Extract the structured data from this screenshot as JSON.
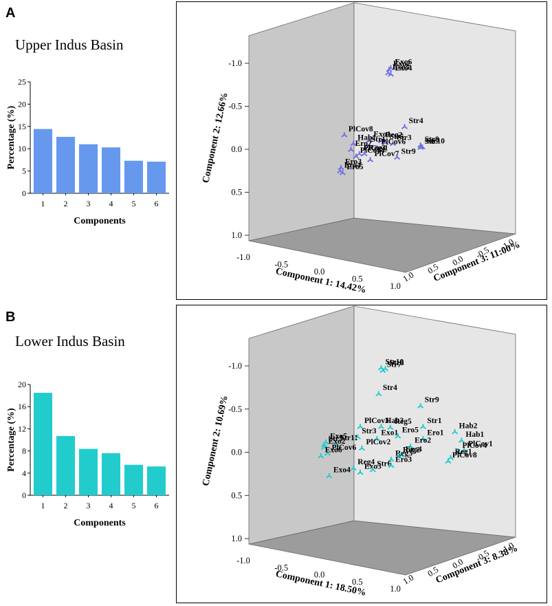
{
  "panels": [
    {
      "letter": "A",
      "title": "Upper Indus Basin",
      "bar_color": "#6699ee",
      "marker_color": "#6f6fe6",
      "chart_data": [
        {
          "type": "bar",
          "categories": [
            "1",
            "2",
            "3",
            "4",
            "5",
            "6"
          ],
          "values": [
            14.42,
            12.66,
            11.0,
            10.3,
            7.3,
            7.1
          ],
          "xlabel": "Components",
          "ylabel": "Percentage (%)",
          "ylim": [
            0,
            25
          ],
          "yticks": [
            0,
            5,
            10,
            15,
            20,
            25
          ],
          "ytick_labels": [
            "0",
            "5",
            "10",
            "15",
            "20",
            "25"
          ]
        },
        {
          "type": "scatter",
          "projection": "3d",
          "axis_labels": {
            "x": "Component 1: 14.42%",
            "y": "Component 2: 12.66%",
            "z": "Component 3: 11:00%"
          },
          "x_ticks": [
            "-1.0",
            "-0.5",
            "0.0",
            "0.5",
            "1.0"
          ],
          "y_ticks": [
            "-1.0",
            "-0.5",
            "0.0",
            "0.5",
            "1.0"
          ],
          "z_ticks": [
            "1.0",
            "0.5",
            "0.0",
            "-0.5",
            "-1.0"
          ],
          "points": [
            {
              "label": "Exo2",
              "u": 0.675,
              "v": 0.93
            },
            {
              "label": "Exo6",
              "u": 0.695,
              "v": 0.95
            },
            {
              "label": "Exo5",
              "u": 0.665,
              "v": 0.89
            },
            {
              "label": "Exo4",
              "u": 0.695,
              "v": 0.875
            },
            {
              "label": "Str4",
              "u": 0.86,
              "v": 0.265
            },
            {
              "label": "Reg2",
              "u": 0.58,
              "v": 0.1
            },
            {
              "label": "Exo1",
              "u": 0.44,
              "v": 0.11
            },
            {
              "label": "Str5",
              "u": 0.63,
              "v": 0.08
            },
            {
              "label": "Str3",
              "u": 0.72,
              "v": 0.07
            },
            {
              "label": "Str8",
              "u": 1.05,
              "v": 0.05
            },
            {
              "label": "Str10",
              "u": 1.07,
              "v": 0.03
            },
            {
              "label": "Str7",
              "u": 1.05,
              "v": 0.025
            },
            {
              "label": "PlCov8",
              "u": 0.14,
              "v": 0.17
            },
            {
              "label": "Hab1",
              "u": 0.25,
              "v": 0.07
            },
            {
              "label": "Str1",
              "u": 0.41,
              "v": 0.05
            },
            {
              "label": "PlCov6",
              "u": 0.53,
              "v": 0.02
            },
            {
              "label": "Ero2",
              "u": 0.22,
              "v": 0.0
            },
            {
              "label": "PlCov1",
              "u": 0.32,
              "v": -0.05
            },
            {
              "label": "Reg3",
              "u": 0.38,
              "v": -0.05
            },
            {
              "label": "PlCov7",
              "u": 0.45,
              "v": -0.12
            },
            {
              "label": "Str9",
              "u": 0.77,
              "v": -0.09
            },
            {
              "label": "PlCov4",
              "u": 0.28,
              "v": -0.08
            },
            {
              "label": "Ero3",
              "u": 0.1,
              "v": -0.21
            },
            {
              "label": "Ero4",
              "u": 0.09,
              "v": -0.25
            },
            {
              "label": "Ero5",
              "u": 0.12,
              "v": -0.27
            }
          ]
        }
      ]
    },
    {
      "letter": "B",
      "title": "Lower Indus Basin",
      "bar_color": "#22cccc",
      "marker_color": "#22cccc",
      "chart_data": [
        {
          "type": "bar",
          "categories": [
            "1",
            "2",
            "3",
            "4",
            "5",
            "6"
          ],
          "values": [
            18.5,
            10.69,
            8.38,
            7.6,
            5.5,
            5.2
          ],
          "xlabel": "Components",
          "ylabel": "Percentage (%)",
          "ylim": [
            0,
            20
          ],
          "yticks": [
            0,
            4,
            8,
            12,
            16,
            20
          ],
          "ytick_labels": [
            "0",
            "4",
            "8",
            "12",
            "16",
            "20"
          ]
        },
        {
          "type": "scatter",
          "projection": "3d",
          "axis_labels": {
            "x": "Component 1: 18.50%",
            "y": "Component 2: 10.69%",
            "z": "Component 3: 8.38%"
          },
          "x_ticks": [
            "-1.0",
            "-0.5",
            "0.0",
            "0.5",
            "1.0"
          ],
          "y_ticks": [
            "-1.0",
            "-0.5",
            "0.0",
            "0.5",
            "1.0"
          ],
          "z_ticks": [
            "1.0",
            "0.5",
            "0.0",
            "-0.5",
            "-1.0"
          ],
          "points": [
            {
              "label": "Str10",
              "u": 0.58,
              "v": 0.98
            },
            {
              "label": "Str8",
              "u": 0.63,
              "v": 0.97
            },
            {
              "label": "Str7",
              "u": 0.6,
              "v": 0.95
            },
            {
              "label": "Str4",
              "u": 0.55,
              "v": 0.68
            },
            {
              "label": "Str9",
              "u": 1.05,
              "v": 0.54
            },
            {
              "label": "Hab3",
              "u": 0.58,
              "v": 0.3
            },
            {
              "label": "PlCov3",
              "u": 0.33,
              "v": 0.3
            },
            {
              "label": "Reg5",
              "u": 0.69,
              "v": 0.29
            },
            {
              "label": "Str1",
              "u": 1.08,
              "v": 0.3
            },
            {
              "label": "Hab2",
              "u": 1.46,
              "v": 0.24
            },
            {
              "label": "Exo5",
              "u": -0.08,
              "v": 0.12
            },
            {
              "label": "Str11",
              "u": 0.04,
              "v": 0.1
            },
            {
              "label": "Str3",
              "u": 0.3,
              "v": 0.18
            },
            {
              "label": "Exo1",
              "u": 0.53,
              "v": 0.16
            },
            {
              "label": "Ero5",
              "u": 0.78,
              "v": 0.19
            },
            {
              "label": "Ero1",
              "u": 1.08,
              "v": 0.16
            },
            {
              "label": "Hab1",
              "u": 1.54,
              "v": 0.14
            },
            {
              "label": "Str5",
              "u": -0.1,
              "v": 0.09
            },
            {
              "label": "Exo2",
              "u": -0.1,
              "v": 0.06
            },
            {
              "label": "PlCov2",
              "u": 0.35,
              "v": 0.05
            },
            {
              "label": "PlCov6",
              "u": -0.06,
              "v": -0.01
            },
            {
              "label": "Ero2",
              "u": 0.93,
              "v": 0.07
            },
            {
              "label": "Ero4",
              "u": 0.82,
              "v": -0.03
            },
            {
              "label": "PlCov1",
              "u": 1.57,
              "v": 0.03
            },
            {
              "label": "Exo6",
              "u": -0.14,
              "v": -0.04
            },
            {
              "label": "PlCov4",
              "u": 1.5,
              "v": 0.01
            },
            {
              "label": "Reg4",
              "u": 0.25,
              "v": -0.18
            },
            {
              "label": "Exo4",
              "u": -0.04,
              "v": -0.27
            },
            {
              "label": "Reg3",
              "u": 0.7,
              "v": -0.08
            },
            {
              "label": "Reg2",
              "u": 0.79,
              "v": -0.04
            },
            {
              "label": "Reg1",
              "u": 1.41,
              "v": -0.06
            },
            {
              "label": "Exo3",
              "u": 0.33,
              "v": -0.23
            },
            {
              "label": "Str6",
              "u": 0.48,
              "v": -0.2
            },
            {
              "label": "Ero3",
              "u": 0.7,
              "v": -0.15
            },
            {
              "label": "PlCov8",
              "u": 1.38,
              "v": -0.1
            }
          ]
        }
      ]
    }
  ]
}
